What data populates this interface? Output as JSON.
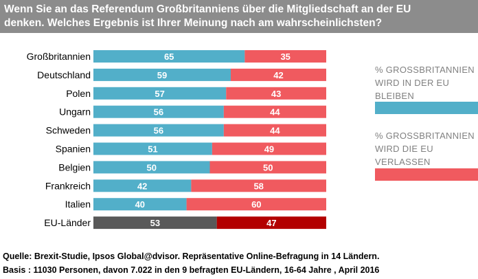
{
  "title": {
    "line1": "Wenn Sie an das Referendum Großbritanniens über die Mitgliedschaft an der EU",
    "line2": "denken. Welches  Ergebnis ist Ihrer Meinung nach am wahrscheinlichsten?"
  },
  "legend": {
    "remain": {
      "label": "% GROSSBRITANNIEN WIRD IN DER EU BLEIBEN",
      "color": "#52afc9"
    },
    "leave": {
      "label": "% GROSSBRITANNIEN WIRD DIE EU VERLASSEN",
      "color": "#f05a5f"
    }
  },
  "footer": {
    "line1": "Quelle: Brexit-Studie, Ipsos Global@dvisor. Repräsentative  Online-Befragung  in 14 Ländern.",
    "line2": "Basis : 11030 Personen, davon 7.022 in den 9 befragten  EU-Ländern, 16-64 Jahre , April 2016"
  },
  "chart_data": {
    "type": "bar",
    "orientation": "horizontal",
    "stacked": true,
    "categories": [
      "Großbritannien",
      "Deutschland",
      "Polen",
      "Ungarn",
      "Schweden",
      "Spanien",
      "Belgien",
      "Frankreich",
      "Italien",
      "EU-Länder"
    ],
    "series": [
      {
        "name": "% GROSSBRITANNIEN WIRD IN DER EU BLEIBEN",
        "values": [
          65,
          59,
          57,
          56,
          56,
          51,
          50,
          42,
          40,
          53
        ],
        "color": "#52afc9"
      },
      {
        "name": "% GROSSBRITANNIEN WIRD DIE EU VERLASSEN",
        "values": [
          35,
          42,
          43,
          44,
          44,
          49,
          50,
          58,
          60,
          47
        ],
        "color": "#f05a5f"
      }
    ],
    "highlight": {
      "category": "EU-Länder",
      "colors": [
        "#595959",
        "#b30000"
      ]
    },
    "xlim": [
      0,
      100
    ],
    "legend_position": "right",
    "grid": false
  }
}
